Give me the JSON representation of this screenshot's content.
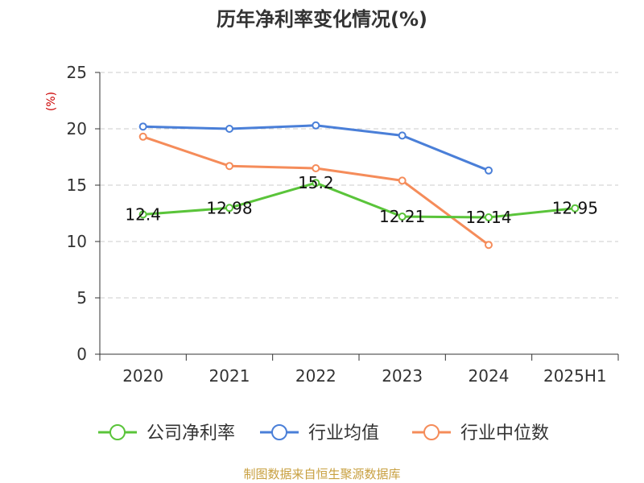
{
  "title": "历年净利率变化情况(%)",
  "source": "制图数据来自恒生聚源数据库",
  "chart_data": {
    "type": "line",
    "title": "历年净利率变化情况(%)",
    "ylabel": "(%)",
    "xlabel": "",
    "categories": [
      "2020",
      "2021",
      "2022",
      "2023",
      "2024",
      "2025H1"
    ],
    "ylim": [
      0,
      25
    ],
    "yticks": [
      "0",
      "5",
      "10",
      "15",
      "20",
      "25"
    ],
    "grid": true,
    "legend_position": "bottom",
    "series": [
      {
        "name": "公司净利率",
        "color": "#5ac43a",
        "values": [
          12.4,
          12.98,
          15.2,
          12.21,
          12.14,
          12.95
        ],
        "labels": [
          "12.4",
          "12.98",
          "15.2",
          "12.21",
          "12.14",
          "12.95"
        ]
      },
      {
        "name": "行业均值",
        "color": "#4a7fd8",
        "values": [
          20.2,
          20.0,
          20.3,
          19.4,
          16.3,
          null
        ],
        "labels": []
      },
      {
        "name": "行业中位数",
        "color": "#f58c5a",
        "values": [
          19.3,
          16.7,
          16.5,
          15.4,
          9.7,
          null
        ],
        "labels": []
      }
    ]
  }
}
